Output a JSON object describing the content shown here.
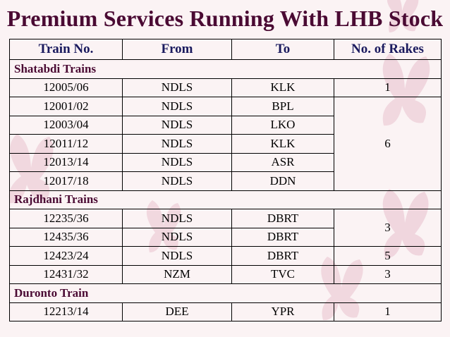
{
  "title": "Premium Services Running With LHB Stock",
  "headers": [
    "Train No.",
    "From",
    "To",
    "No. of Rakes"
  ],
  "sections": {
    "shatabdi": {
      "label": "Shatabdi Trains",
      "rows": [
        {
          "train": "12005/06",
          "from": "NDLS",
          "to": "KLK",
          "rakes": "1"
        },
        {
          "train": "12001/02",
          "from": "NDLS",
          "to": "BPL",
          "rakes": "6"
        },
        {
          "train": "12003/04",
          "from": "NDLS",
          "to": "LKO"
        },
        {
          "train": "12011/12",
          "from": "NDLS",
          "to": "KLK"
        },
        {
          "train": "12013/14",
          "from": "NDLS",
          "to": "ASR"
        },
        {
          "train": "12017/18",
          "from": "NDLS",
          "to": "DDN"
        }
      ]
    },
    "rajdhani": {
      "label": "Rajdhani Trains",
      "rows": [
        {
          "train": "12235/36",
          "from": "NDLS",
          "to": "DBRT",
          "rakes": "3"
        },
        {
          "train": "12435/36",
          "from": "NDLS",
          "to": "DBRT"
        },
        {
          "train": "12423/24",
          "from": "NDLS",
          "to": "DBRT",
          "rakes": "5"
        },
        {
          "train": "12431/32",
          "from": "NZM",
          "to": "TVC",
          "rakes": "3"
        }
      ]
    },
    "duronto": {
      "label": "Duronto Train",
      "rows": [
        {
          "train": "12213/14",
          "from": "DEE",
          "to": "YPR",
          "rakes": "1"
        }
      ]
    }
  },
  "colors": {
    "title": "#4a0a33",
    "header": "#1a1a5e",
    "background": "#fbf3f4",
    "butterfly": "#ecc8d3"
  }
}
